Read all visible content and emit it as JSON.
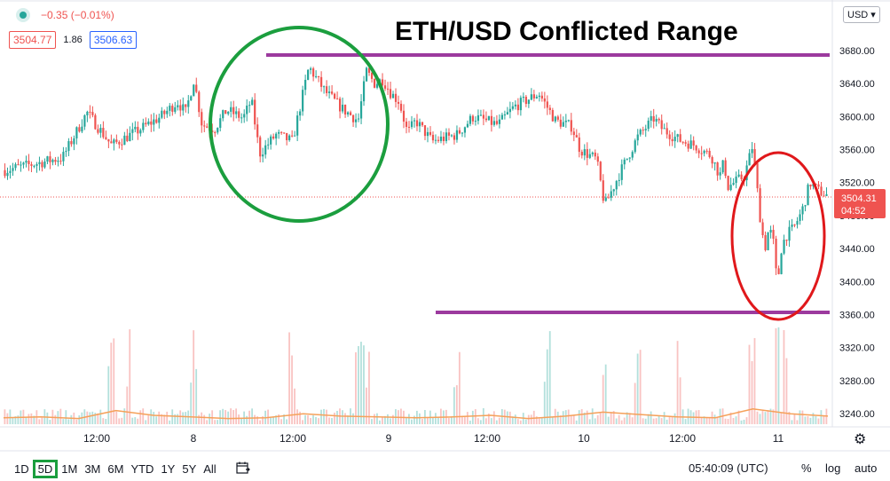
{
  "header": {
    "change": "−0.35 (−0.01%)",
    "bid": "3504.77",
    "spread": "1.86",
    "ask": "3506.63",
    "currency_button": "USD"
  },
  "annotation_title": "ETH/USD Conflicted Range",
  "price_axis": {
    "ticks": [
      "3680.00",
      "3640.00",
      "3600.00",
      "3560.00",
      "3520.00",
      "3480.00",
      "3440.00",
      "3400.00",
      "3360.00",
      "3320.00",
      "3280.00",
      "3240.00"
    ],
    "last_price": "3504.31",
    "countdown": "04:52"
  },
  "time_axis": {
    "labels": [
      "12:00",
      "8",
      "12:00",
      "9",
      "12:00",
      "10",
      "12:00",
      "11"
    ]
  },
  "bottom_bar": {
    "timeframes": [
      "1D",
      "5D",
      "1M",
      "3M",
      "6M",
      "YTD",
      "1Y",
      "5Y",
      "All"
    ],
    "active": "5D",
    "clock": "05:40:09 (UTC)",
    "percent_label": "%",
    "log_label": "log",
    "auto_label": "auto"
  },
  "icons": {
    "status": "live-dot-icon",
    "calendar": "calendar-range-icon",
    "settings": "gear-icon"
  },
  "colors": {
    "up": "#26a69a",
    "down": "#ef5350",
    "range_line": "#9c3a9e",
    "green_circle": "#1b9e3e",
    "red_circle": "#e0181b",
    "volume_ma": "#f5a15a"
  },
  "chart_data": {
    "type": "candlestick",
    "symbol": "ETH/USD",
    "ylim": [
      3230,
      3705
    ],
    "grid": false,
    "close_path": {
      "x": [
        0,
        0.07,
        0.1,
        0.13,
        0.16,
        0.19,
        0.21,
        0.22,
        0.23,
        0.24,
        0.255,
        0.27,
        0.29,
        0.3,
        0.31,
        0.33,
        0.35,
        0.37,
        0.39,
        0.41,
        0.43,
        0.44,
        0.45,
        0.46,
        0.47,
        0.48,
        0.49,
        0.5,
        0.52,
        0.55,
        0.57,
        0.6,
        0.62,
        0.65,
        0.67,
        0.69,
        0.7,
        0.72,
        0.73,
        0.75,
        0.77,
        0.79,
        0.8,
        0.82,
        0.84,
        0.86,
        0.87,
        0.875,
        0.88,
        0.9,
        0.91,
        0.92,
        0.925,
        0.93,
        0.935,
        0.94,
        0.945,
        0.95,
        0.96,
        0.97,
        0.98,
        0.99,
        1
      ],
      "y": [
        3535,
        3550,
        3605,
        3565,
        3582,
        3600,
        3618,
        3605,
        3645,
        3590,
        3585,
        3608,
        3598,
        3620,
        3555,
        3578,
        3570,
        3660,
        3630,
        3610,
        3595,
        3655,
        3640,
        3645,
        3628,
        3618,
        3580,
        3595,
        3570,
        3578,
        3600,
        3590,
        3612,
        3628,
        3595,
        3588,
        3560,
        3548,
        3492,
        3535,
        3575,
        3598,
        3585,
        3572,
        3565,
        3552,
        3528,
        3545,
        3515,
        3528,
        3565,
        3470,
        3440,
        3465,
        3450,
        3395,
        3440,
        3455,
        3465,
        3485,
        3520,
        3510,
        3505
      ]
    },
    "volume": {
      "spike_positions": [
        0.13,
        0.15,
        0.23,
        0.35,
        0.43,
        0.44,
        0.55,
        0.66,
        0.73,
        0.77,
        0.82,
        0.91,
        0.94,
        0.95
      ],
      "ma_levels": [
        0.35,
        0.4,
        0.3,
        0.8,
        0.5,
        0.4,
        0.3,
        0.35,
        0.6,
        0.45,
        0.4,
        0.35,
        0.4,
        0.5,
        0.3,
        0.45,
        0.7,
        0.55,
        0.4,
        0.35,
        0.9,
        0.6,
        0.45
      ]
    },
    "annotations": [
      {
        "type": "hline",
        "label": "range top",
        "price": 3675,
        "x": [
          0.32,
          1.0
        ]
      },
      {
        "type": "hline",
        "label": "range bottom",
        "price": 3366,
        "x": [
          0.53,
          1.0
        ]
      },
      {
        "type": "ellipse",
        "label": "green circle",
        "color": "green"
      },
      {
        "type": "ellipse",
        "label": "red circle",
        "color": "red"
      }
    ],
    "last_price": 3504.31
  }
}
